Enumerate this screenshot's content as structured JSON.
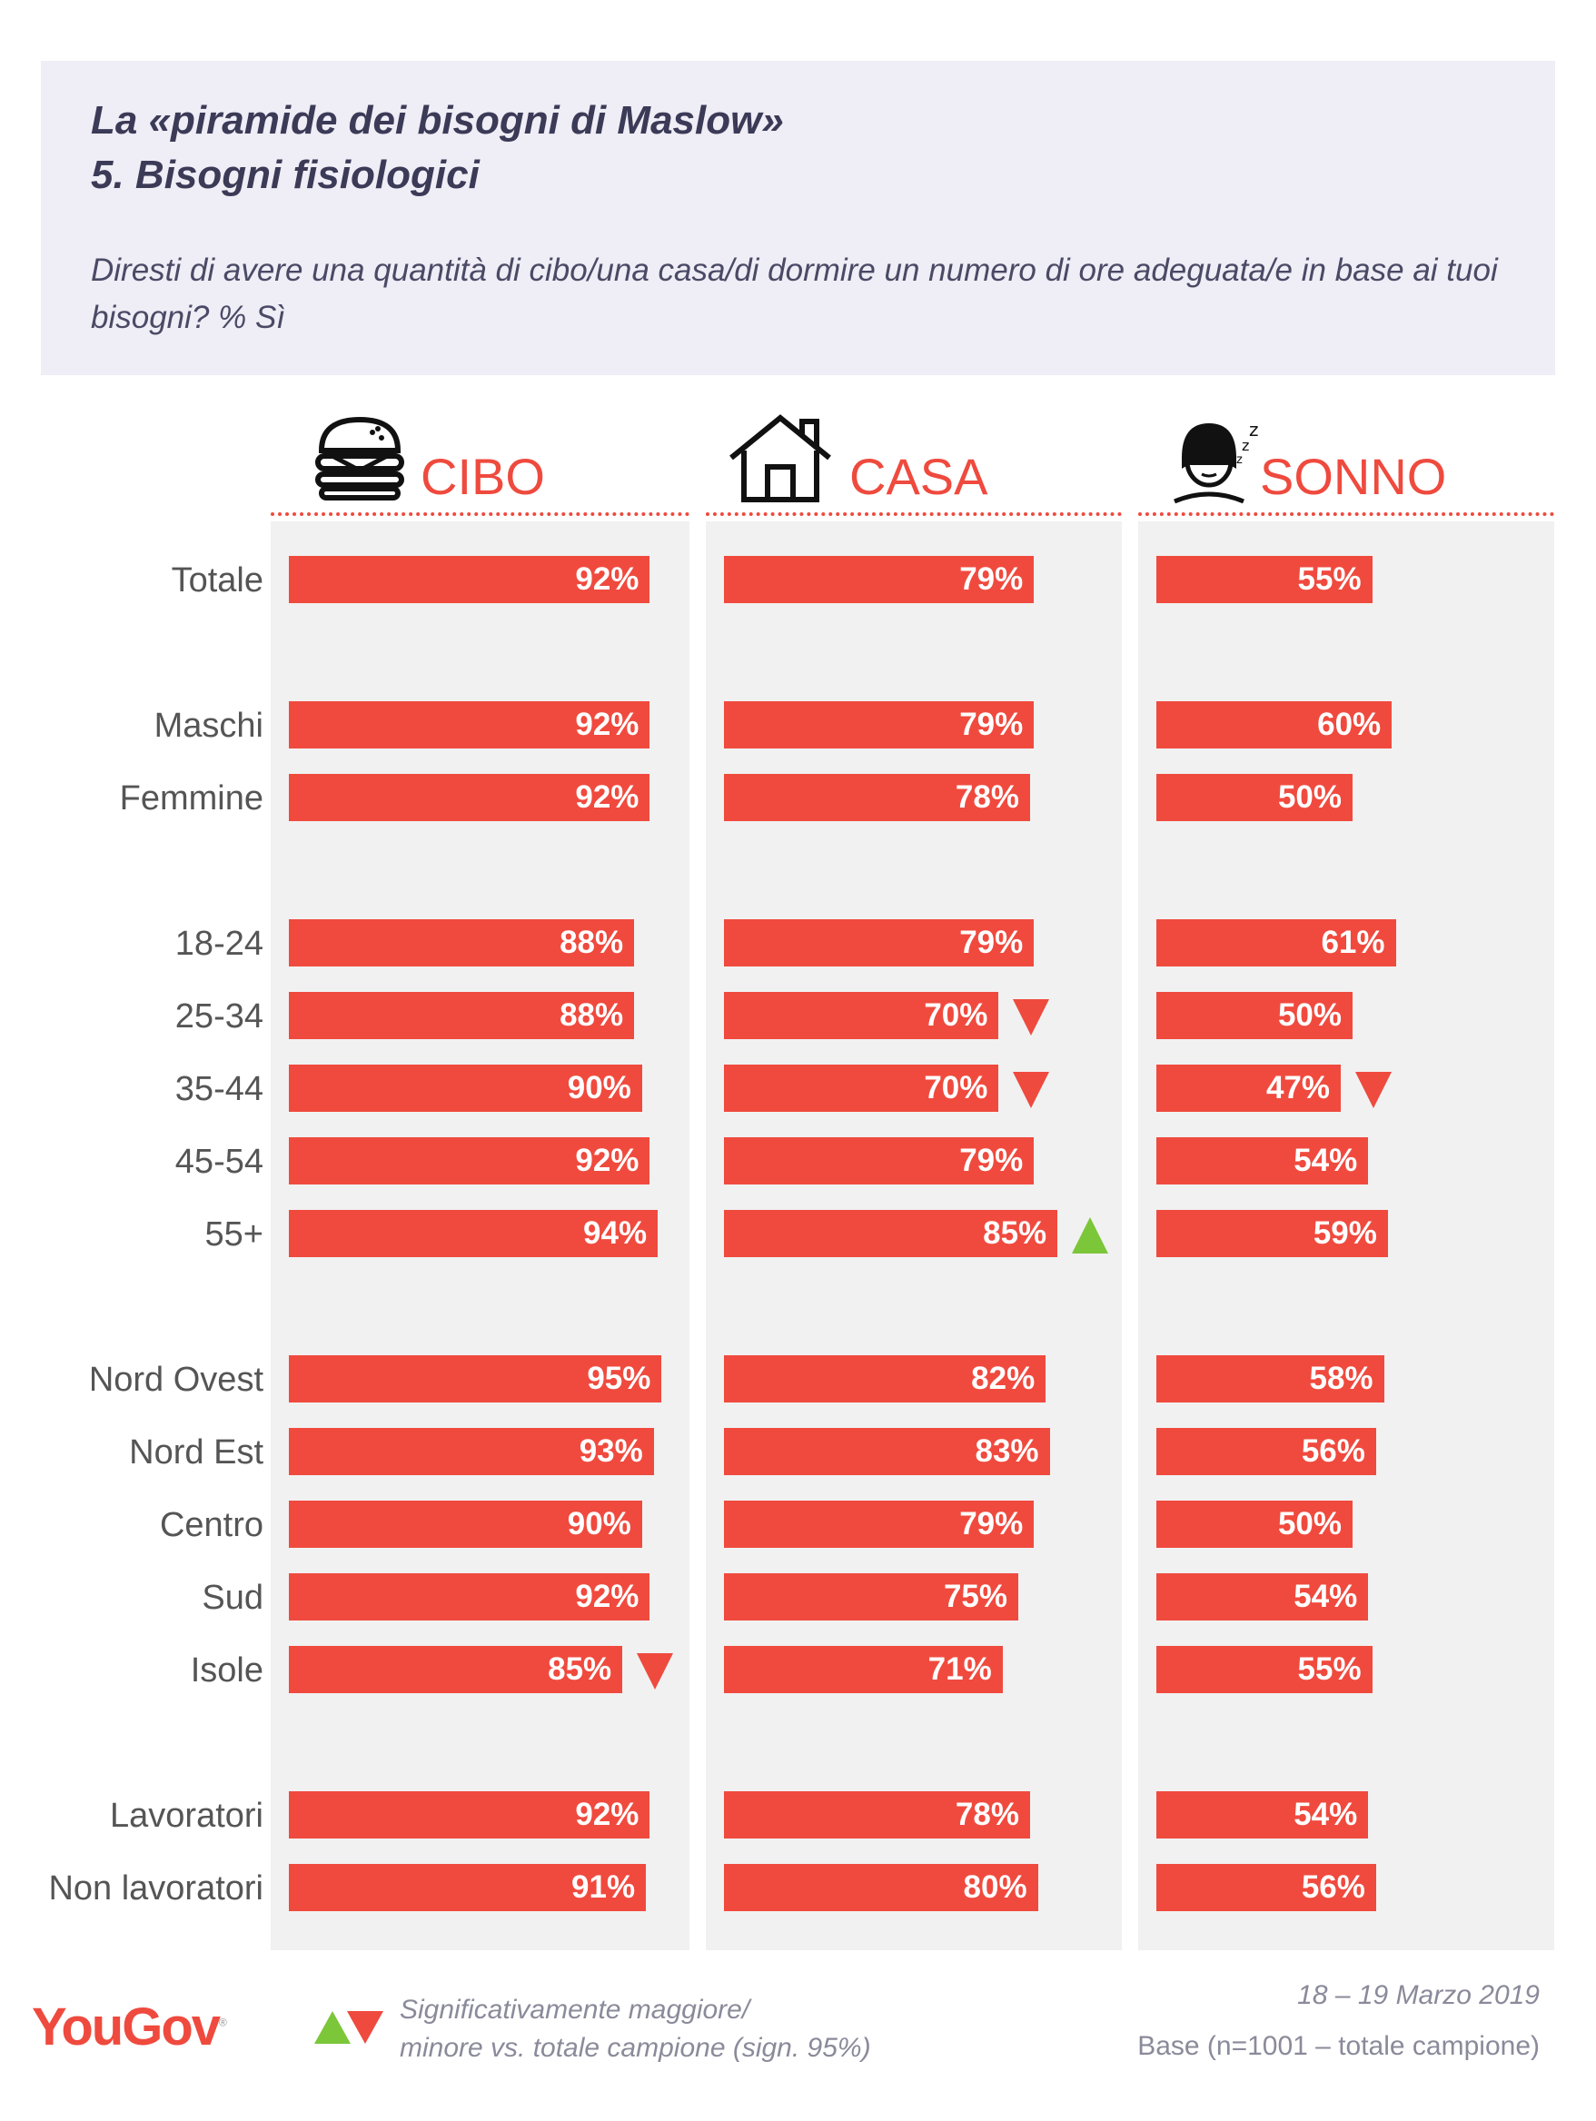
{
  "header": {
    "title_line1": "La «piramide dei bisogni di Maslow»",
    "title_line2": "5. Bisogni fisiologici",
    "question": "Diresti di avere una quantità di cibo/una casa/di dormire un numero di ore adeguata/e in base ai tuoi bisogni? % Sì"
  },
  "columns": [
    {
      "label": "CIBO",
      "icon": "burger-icon"
    },
    {
      "label": "CASA",
      "icon": "house-icon"
    },
    {
      "label": "SONNO",
      "icon": "sleeping-person-icon"
    }
  ],
  "chart_data": {
    "type": "bar",
    "unit": "%",
    "categories": [
      "Totale",
      "Maschi",
      "Femmine",
      "18-24",
      "25-34",
      "35-44",
      "45-54",
      "55+",
      "Nord Ovest",
      "Nord Est",
      "Centro",
      "Sud",
      "Isole",
      "Lavoratori",
      "Non lavoratori"
    ],
    "groups": [
      [
        "Totale"
      ],
      [
        "Maschi",
        "Femmine"
      ],
      [
        "18-24",
        "25-34",
        "35-44",
        "45-54",
        "55+"
      ],
      [
        "Nord Ovest",
        "Nord Est",
        "Centro",
        "Sud",
        "Isole"
      ],
      [
        "Lavoratori",
        "Non lavoratori"
      ]
    ],
    "series": [
      {
        "name": "CIBO",
        "values": [
          92,
          92,
          92,
          88,
          88,
          90,
          92,
          94,
          95,
          93,
          90,
          92,
          85,
          92,
          91
        ],
        "labels": [
          "92%",
          "92%",
          "92%",
          "88%",
          "88%",
          "90%",
          "92%",
          "94%",
          "95%",
          "93%",
          "90%",
          "92%",
          "85%",
          "92%",
          "91%"
        ],
        "significance": [
          null,
          null,
          null,
          null,
          null,
          null,
          null,
          null,
          null,
          null,
          null,
          null,
          "down",
          null,
          null
        ]
      },
      {
        "name": "CASA",
        "values": [
          79,
          79,
          78,
          79,
          70,
          70,
          79,
          85,
          82,
          83,
          79,
          75,
          71,
          78,
          80
        ],
        "labels": [
          "79%",
          "79%",
          "78%",
          "79%",
          "70%",
          "70%",
          "79%",
          "85%",
          "82%",
          "83%",
          "79%",
          "75%",
          "71%",
          "78%",
          "80%"
        ],
        "significance": [
          null,
          null,
          null,
          null,
          "down",
          "down",
          null,
          "up",
          null,
          null,
          null,
          null,
          null,
          null,
          null
        ]
      },
      {
        "name": "SONNO",
        "values": [
          55,
          60,
          50,
          61,
          50,
          47,
          54,
          59,
          58,
          56,
          50,
          54,
          55,
          54,
          56
        ],
        "labels": [
          "55%",
          "60%",
          "50%",
          "61%",
          "50%",
          "47%",
          "54%",
          "59%",
          "58%",
          "56%",
          "50%",
          "54%",
          "55%",
          "54%",
          "56%"
        ],
        "significance": [
          null,
          null,
          null,
          null,
          null,
          "down",
          null,
          null,
          null,
          null,
          null,
          null,
          null,
          null,
          null
        ]
      }
    ],
    "colors": {
      "bar": "#f04a3e",
      "up": "#7cc63a",
      "down": "#ef4a3e",
      "column_bg": "#f1f1f1"
    }
  },
  "footer": {
    "logo": "YouGov",
    "legend_line1": "Significativamente maggiore/",
    "legend_line2": "minore vs. totale campione (sign. 95%)",
    "date": "18 – 19 Marzo 2019",
    "base": "Base (n=1001 – totale campione)"
  }
}
